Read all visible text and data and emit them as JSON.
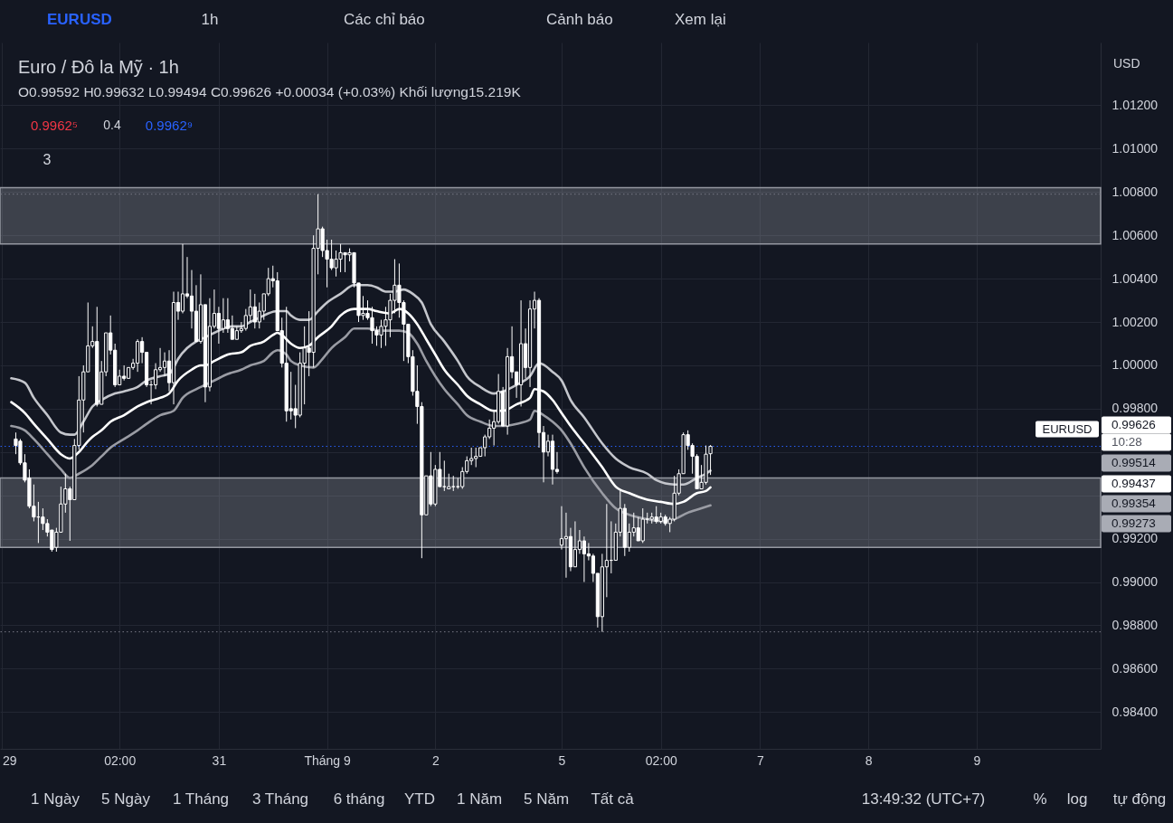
{
  "chart_data": {
    "type": "candlestick",
    "title": "Euro / Đô la Mỹ · 1h",
    "subtitle": "O0.99592 H0.99632 L0.99494 C0.99626 +0.00034 (+0.03%) Khối lượng15.219K",
    "color": "#ffffff",
    "categories": [
      "29",
      null,
      null,
      null,
      null,
      null,
      null,
      null,
      null,
      null,
      null,
      null,
      null,
      null,
      null,
      null,
      null,
      null,
      null,
      null,
      null,
      null,
      null,
      null,
      null,
      null,
      "02:00",
      null,
      null,
      null,
      null,
      null,
      null,
      null,
      null,
      null,
      null,
      null,
      null,
      null,
      null,
      null,
      null,
      null,
      null,
      null,
      null,
      null,
      "31",
      null,
      null,
      null,
      null,
      null,
      null,
      null,
      null,
      null,
      null,
      null,
      null,
      null,
      null,
      null,
      null,
      null,
      null,
      null,
      null,
      null,
      null,
      null,
      "Tháng 9",
      null,
      null,
      null,
      null,
      null,
      null,
      null,
      null,
      null,
      null,
      null,
      null,
      null,
      null,
      null,
      null,
      null,
      null,
      null,
      null,
      null,
      null,
      null,
      "2",
      null,
      null,
      null,
      null,
      null,
      null,
      null,
      null,
      null,
      null,
      null,
      null,
      null,
      null,
      null,
      null,
      null,
      null,
      null,
      null,
      null,
      null,
      null,
      null,
      null,
      null,
      null,
      "5",
      null,
      null,
      null,
      null,
      null,
      null,
      null,
      null,
      null,
      null,
      null,
      null,
      null,
      null,
      null,
      null,
      null,
      null,
      null,
      null,
      null,
      "02:00",
      null,
      null,
      null,
      null,
      null,
      null,
      null,
      null,
      null,
      null,
      null,
      null,
      null,
      null,
      null,
      null,
      null,
      null,
      null,
      null,
      null,
      "7",
      null,
      null,
      null,
      null,
      null,
      null,
      null,
      null,
      null,
      null,
      null,
      null,
      null,
      null,
      null,
      null,
      null,
      null,
      null,
      null,
      null,
      null,
      null,
      "8",
      null,
      null,
      null,
      null,
      null,
      null,
      null,
      null,
      null,
      null,
      null,
      null,
      null,
      null,
      null,
      null,
      null,
      null,
      null,
      null,
      null,
      null,
      null,
      "9",
      null,
      null,
      null,
      null,
      null,
      null,
      null,
      null,
      null,
      null,
      null,
      null,
      null,
      null,
      null,
      null,
      null,
      null,
      null,
      null,
      null,
      null,
      null,
      null,
      null,
      null,
      null
    ],
    "ohlc": [
      null,
      null,
      null,
      [
        0.9966,
        0.9969,
        0.9959,
        0.9963
      ],
      [
        0.9965,
        0.9966,
        0.9954,
        0.9955
      ],
      [
        0.9955,
        0.9959,
        0.9946,
        0.9947
      ],
      [
        0.9948,
        0.9952,
        0.9934,
        0.9935
      ],
      [
        0.9935,
        0.9945,
        0.9928,
        0.993
      ],
      [
        0.993,
        0.9937,
        0.9918,
        0.993
      ],
      [
        0.993,
        0.9934,
        0.9924,
        0.9927
      ],
      [
        0.9927,
        0.9929,
        0.9921,
        0.9923
      ],
      [
        0.9924,
        0.9924,
        0.9914,
        0.9915
      ],
      [
        0.9916,
        0.9925,
        0.9914,
        0.9923
      ],
      [
        0.9923,
        0.9944,
        0.9923,
        0.9936
      ],
      [
        0.9936,
        0.995,
        0.9932,
        0.9943
      ],
      [
        0.9943,
        0.9944,
        0.9919,
        0.9938
      ],
      [
        0.9938,
        0.9966,
        0.9938,
        0.9963
      ],
      [
        0.9963,
        0.9995,
        0.9961,
        0.9984
      ],
      [
        0.9984,
        1.0,
        0.9969,
        0.9997
      ],
      [
        0.9997,
        1.0029,
        0.9997,
        1.0009
      ],
      [
        1.0009,
        1.0018,
        1.0008,
        1.0011
      ],
      [
        1.0011,
        1.0027,
        0.9981,
        0.9982
      ],
      [
        0.9982,
        1.0002,
        0.9982,
        0.9997
      ],
      [
        0.9997,
        1.0015,
        0.9995,
        1.0015
      ],
      [
        1.0015,
        1.0023,
        1.0005,
        1.0007
      ],
      [
        1.0007,
        1.001,
        0.999,
        0.9991
      ],
      [
        0.9991,
        0.9998,
        0.9991,
        0.9995
      ],
      [
        0.9995,
        1.0,
        0.9993,
        0.9994
      ],
      [
        0.9994,
        0.9999,
        0.9994,
        0.9999
      ],
      [
        0.9999,
        1.0003,
        0.9998,
        1.0001
      ],
      [
        1.0001,
        1.0012,
        0.9997,
        1.0011
      ],
      [
        1.0011,
        1.0013,
        1.0001,
        1.0006
      ],
      [
        1.0006,
        1.0006,
        0.999,
        0.9991
      ],
      [
        0.9991,
        0.9993,
        0.9982,
        0.9991
      ],
      [
        0.9991,
        1.0001,
        0.9989,
        0.9998
      ],
      [
        0.9998,
        1.0008,
        0.9997,
        0.9999
      ],
      [
        0.9999,
        1.0006,
        0.9995,
        1.0002
      ],
      [
        1.0002,
        1.0007,
        0.9988,
        0.9992
      ],
      [
        0.9992,
        1.0034,
        0.9982,
        1.0029
      ],
      [
        1.0029,
        1.0034,
        1.0021,
        1.0025
      ],
      [
        1.0025,
        1.0056,
        1.0024,
        1.0033
      ],
      [
        1.0033,
        1.005,
        1.0031,
        1.0032
      ],
      [
        1.0032,
        1.0044,
        1.0017,
        1.0025
      ],
      [
        1.0025,
        1.0037,
        1.0011,
        1.0011
      ],
      [
        1.0011,
        1.0042,
        1.001,
        1.0028
      ],
      [
        1.0028,
        1.0028,
        0.9983,
        0.999
      ],
      [
        0.999,
        1.0031,
        0.9988,
        1.0018
      ],
      [
        1.0018,
        1.0035,
        1.0017,
        1.0024
      ],
      [
        1.0024,
        1.0027,
        1.001,
        1.0017
      ],
      [
        1.0017,
        1.0031,
        1.0015,
        1.0021
      ],
      [
        1.0021,
        1.0031,
        1.0015,
        1.0017
      ],
      [
        1.0017,
        1.0023,
        1.0012,
        1.0012
      ],
      [
        1.0012,
        1.0018,
        1.0012,
        1.0016
      ],
      [
        1.0016,
        1.002,
        1.0015,
        1.0017
      ],
      [
        1.0017,
        1.0026,
        1.0016,
        1.0023
      ],
      [
        1.0023,
        1.0035,
        1.002,
        1.0027
      ],
      [
        1.0027,
        1.0033,
        1.0017,
        1.002
      ],
      [
        1.002,
        1.0029,
        1.0017,
        1.0025
      ],
      [
        1.0025,
        1.0033,
        1.0021,
        1.0033
      ],
      [
        1.0033,
        1.0045,
        1.0032,
        1.004
      ],
      [
        1.004,
        1.0046,
        1.0036,
        1.0039
      ],
      [
        1.0039,
        1.0043,
        1.0016,
        1.0016
      ],
      [
        1.0016,
        1.0022,
        0.9999,
        1.0001
      ],
      [
        1.0001,
        1.0027,
        0.9974,
        0.9979
      ],
      [
        0.998,
        0.9997,
        0.9975,
        0.9979
      ],
      [
        0.998,
        0.9991,
        0.9971,
        0.9977
      ],
      [
        0.9977,
        1.0006,
        0.9976,
        1.0001
      ],
      [
        1.0001,
        1.0018,
        0.9982,
        1.0008
      ],
      [
        1.0008,
        1.0025,
        0.9995,
        1.0006
      ],
      [
        1.0006,
        1.006,
        0.9999,
        1.0054
      ],
      [
        1.0054,
        1.0079,
        1.0042,
        1.0063
      ],
      [
        1.0063,
        1.0064,
        1.005,
        1.0053
      ],
      [
        1.0053,
        1.0058,
        1.0036,
        1.0049
      ],
      [
        1.0049,
        1.0058,
        1.0044,
        1.0045
      ],
      [
        1.0045,
        1.0053,
        1.0041,
        1.0049
      ],
      [
        1.0049,
        1.0056,
        1.0043,
        1.0052
      ],
      [
        1.0052,
        1.0052,
        1.0043,
        1.0051
      ],
      [
        1.0051,
        1.0054,
        1.0048,
        1.0052
      ],
      [
        1.0052,
        1.0052,
        1.0036,
        1.0038
      ],
      [
        1.0038,
        1.0038,
        1.002,
        1.0023
      ],
      [
        1.0023,
        1.0032,
        1.0021,
        1.0024
      ],
      [
        1.0024,
        1.003,
        1.0021,
        1.0022
      ],
      [
        1.0022,
        1.0027,
        1.001,
        1.0016
      ],
      [
        1.0016,
        1.0018,
        1.0009,
        1.0014
      ],
      [
        1.0014,
        1.0021,
        1.0008,
        1.0018
      ],
      [
        1.0018,
        1.0027,
        1.0009,
        1.0021
      ],
      [
        1.0021,
        1.0033,
        1.0013,
        1.003
      ],
      [
        1.003,
        1.0049,
        1.0024,
        1.0037
      ],
      [
        1.0037,
        1.0047,
        1.0022,
        1.0029
      ],
      [
        1.0029,
        1.003,
        1.0002,
        1.0019
      ],
      [
        1.0019,
        1.0019,
        1.0001,
        1.0004
      ],
      [
        1.0004,
        1.0007,
        0.9986,
        0.9988
      ],
      [
        0.9988,
        1.0,
        0.9973,
        0.9981
      ],
      [
        0.9981,
        0.9983,
        0.9911,
        0.9931
      ],
      [
        0.9931,
        0.9949,
        0.9931,
        0.9949
      ],
      [
        0.9949,
        0.996,
        0.9935,
        0.9936
      ],
      [
        0.9936,
        0.9954,
        0.9935,
        0.9952
      ],
      [
        0.9952,
        0.996,
        0.9944,
        0.9944
      ],
      [
        0.9944,
        0.9956,
        0.9942,
        0.9944
      ],
      [
        0.9943,
        0.995,
        0.9943,
        0.9944
      ],
      [
        0.9944,
        0.9949,
        0.9942,
        0.9944
      ],
      [
        0.9944,
        0.9948,
        0.9943,
        0.9944
      ],
      [
        0.9944,
        0.9953,
        0.9943,
        0.9951
      ],
      [
        0.9951,
        0.9958,
        0.995,
        0.9956
      ],
      [
        0.9956,
        0.9962,
        0.9954,
        0.9957
      ],
      [
        0.9957,
        0.9962,
        0.9953,
        0.9958
      ],
      [
        0.9958,
        0.9962,
        0.9958,
        0.9962
      ],
      [
        0.9962,
        0.9968,
        0.9958,
        0.9967
      ],
      [
        0.9967,
        0.9975,
        0.9966,
        0.9971
      ],
      [
        0.9971,
        0.9979,
        0.9963,
        0.9974
      ],
      [
        0.9974,
        0.9996,
        0.9973,
        0.9988
      ],
      [
        0.9988,
        0.999,
        0.9972,
        0.9972
      ],
      [
        0.9972,
        1.0008,
        0.9968,
        1.0004
      ],
      [
        1.0004,
        1.0018,
        0.9994,
        0.9997
      ],
      [
        0.9997,
        0.9997,
        0.9985,
        0.9991
      ],
      [
        0.9991,
        1.003,
        0.9981,
        1.001
      ],
      [
        1.001,
        1.0017,
        0.9994,
        0.9999
      ],
      [
        0.9999,
        1.003,
        0.999,
        1.0026
      ],
      [
        1.0026,
        1.0034,
        1.0017,
        1.003
      ],
      [
        1.003,
        1.0031,
        0.9962,
        0.9969
      ],
      [
        0.9969,
        0.9972,
        0.9946,
        0.996
      ],
      [
        0.996,
        0.9968,
        0.9958,
        0.9965
      ],
      [
        0.9965,
        0.9968,
        0.9945,
        0.9952
      ],
      [
        0.9952,
        0.996,
        0.995,
        0.9951
      ],
      [
        0.9917,
        0.9935,
        0.9915,
        0.992
      ],
      [
        0.992,
        0.9932,
        0.9902,
        0.9921
      ],
      [
        0.9921,
        0.9925,
        0.9905,
        0.9907
      ],
      [
        0.9907,
        0.9928,
        0.9907,
        0.9915
      ],
      [
        0.9915,
        0.9924,
        0.9913,
        0.9919
      ],
      [
        0.9919,
        0.9921,
        0.99,
        0.9913
      ],
      [
        0.9913,
        0.9918,
        0.991,
        0.9912
      ],
      [
        0.9912,
        0.9913,
        0.99,
        0.9904
      ],
      [
        0.9904,
        0.9904,
        0.9879,
        0.9884
      ],
      [
        0.9884,
        0.9913,
        0.9877,
        0.9907
      ],
      [
        0.9907,
        0.9936,
        0.9893,
        0.991
      ],
      [
        0.991,
        0.9928,
        0.9904,
        0.991
      ],
      [
        0.991,
        0.9927,
        0.991,
        0.9923
      ],
      [
        0.9923,
        0.9943,
        0.9921,
        0.9934
      ],
      [
        0.9934,
        0.9936,
        0.9912,
        0.9916
      ],
      [
        0.9916,
        0.9927,
        0.9914,
        0.9923
      ],
      [
        0.9923,
        0.9932,
        0.9921,
        0.9925
      ],
      [
        0.9925,
        0.993,
        0.9919,
        0.9919
      ],
      [
        0.9919,
        0.9934,
        0.9918,
        0.9929
      ],
      [
        0.9929,
        0.9932,
        0.9927,
        0.9929
      ],
      [
        0.9929,
        0.9932,
        0.9927,
        0.993
      ],
      [
        0.993,
        0.9935,
        0.9927,
        0.9928
      ],
      [
        0.9928,
        0.9932,
        0.9927,
        0.993
      ],
      [
        0.993,
        0.9931,
        0.9926,
        0.9927
      ],
      [
        0.9927,
        0.993,
        0.9923,
        0.9929
      ],
      [
        0.9929,
        0.9949,
        0.9928,
        0.9941
      ],
      [
        0.9941,
        0.9952,
        0.994,
        0.995
      ],
      [
        0.995,
        0.9969,
        0.995,
        0.9968
      ],
      [
        0.9968,
        0.997,
        0.9961,
        0.9963
      ],
      [
        0.9963,
        0.9964,
        0.995,
        0.9958
      ],
      [
        0.9958,
        0.9959,
        0.9943,
        0.9943
      ],
      [
        0.9943,
        0.9954,
        0.9943,
        0.9946
      ],
      [
        0.9946,
        0.9963,
        0.9945,
        0.9959
      ],
      [
        0.99592,
        0.99632,
        0.99494,
        0.99626
      ],
      null,
      null,
      null,
      null,
      null,
      null,
      null,
      null,
      null,
      null,
      null,
      null,
      null,
      null,
      null,
      null,
      null,
      null,
      null,
      null,
      null,
      null,
      null,
      null,
      null,
      null,
      null,
      null,
      null,
      null,
      null,
      null,
      null,
      null,
      null,
      null,
      null,
      null,
      null,
      null,
      null,
      null,
      null,
      null,
      null,
      null,
      null,
      null,
      null,
      null,
      null,
      null,
      null,
      null,
      null,
      null,
      null,
      null,
      null,
      null,
      null,
      null,
      null,
      null,
      null,
      null,
      null,
      null,
      null,
      null,
      null,
      null,
      null,
      null,
      null,
      null,
      null,
      null,
      null,
      null,
      null,
      null,
      null,
      null,
      null,
      null
    ],
    "series": [
      {
        "type": "line",
        "color": "#c4c6cc",
        "values": [
          null,
          null,
          0.9994,
          null,
          null,
          0.9992,
          null,
          0.9985,
          null,
          null,
          0.9977,
          null,
          null,
          0.9969,
          null,
          0.9968,
          0.9968,
          null,
          0.9974,
          null,
          0.9981,
          null,
          0.9984,
          null,
          null,
          0.9987,
          null,
          0.9988,
          null,
          null,
          0.999,
          null,
          0.9993,
          null,
          null,
          0.9995,
          null,
          0.9996,
          0.9999,
          1.0003,
          null,
          1.0008,
          null,
          1.0011,
          null,
          1.0013,
          null,
          1.0015,
          null,
          1.0017,
          null,
          1.0018,
          null,
          1.0018,
          null,
          1.002,
          null,
          1.0022,
          null,
          1.0024,
          null,
          1.0025,
          null,
          1.0025,
          1.0023,
          null,
          1.0021,
          null,
          1.0021,
          null,
          1.0025,
          null,
          1.0029,
          null,
          null,
          1.0033,
          null,
          null,
          1.0037,
          null,
          null,
          1.0037,
          null,
          1.0036,
          null,
          1.0034,
          null,
          1.0034,
          null,
          1.0035,
          null,
          1.0033,
          null,
          1.0029,
          null,
          1.0019,
          null,
          null,
          1.0011,
          null,
          null,
          1.0002,
          null,
          0.9995,
          null,
          null,
          0.999,
          null,
          null,
          0.9987,
          null,
          0.9988,
          null,
          null,
          0.9991,
          null,
          null,
          0.9995,
          null,
          1.0001,
          null,
          null,
          0.9997,
          null,
          0.9993,
          null,
          0.9984,
          null,
          null,
          0.9976,
          null,
          null,
          null,
          0.9964,
          null,
          null,
          0.9957,
          null,
          null,
          0.9953,
          null,
          null,
          null,
          0.995,
          null,
          0.9947,
          null,
          null,
          null,
          0.9945,
          null,
          0.9945,
          null,
          null,
          0.9948,
          null,
          0.995,
          0.99514,
          null,
          null,
          null,
          null,
          null,
          null,
          null,
          null,
          null,
          null,
          null,
          null,
          null,
          null,
          null,
          null,
          null,
          null,
          null,
          null,
          null,
          null,
          null,
          null,
          null,
          null,
          null,
          null,
          null,
          null,
          null,
          null,
          null,
          null,
          null,
          null,
          null,
          null,
          null,
          null,
          null,
          null,
          null,
          null,
          null,
          null,
          null,
          null,
          null,
          null,
          null,
          null,
          null,
          null,
          null,
          null,
          null,
          null,
          null,
          null,
          null,
          null,
          null,
          null,
          null,
          null,
          null,
          null,
          null,
          null,
          null,
          null,
          null,
          null,
          null,
          null,
          null,
          null,
          null,
          null,
          null,
          null,
          null,
          null,
          null,
          null
        ]
      },
      {
        "type": "line",
        "color": "#ffffff",
        "values": [
          null,
          null,
          0.9983,
          null,
          null,
          0.9978,
          null,
          0.9973,
          null,
          null,
          0.9966,
          null,
          null,
          0.9959,
          null,
          0.9957,
          null,
          0.996,
          null,
          0.9965,
          0.9967,
          null,
          0.997,
          null,
          0.9974,
          null,
          null,
          0.9977,
          null,
          null,
          0.9981,
          null,
          0.9983,
          null,
          null,
          0.9985,
          null,
          0.9987,
          null,
          0.9993,
          null,
          null,
          0.9998,
          null,
          1.0,
          1.0,
          null,
          1.0002,
          null,
          null,
          1.0005,
          null,
          null,
          1.0006,
          null,
          1.0009,
          null,
          null,
          1.0011,
          null,
          1.0014,
          1.0015,
          1.0014,
          null,
          1.001,
          null,
          1.0008,
          null,
          1.0009,
          null,
          1.0013,
          null,
          null,
          1.0018,
          null,
          1.0023,
          null,
          null,
          1.0026,
          null,
          null,
          1.0026,
          null,
          1.0025,
          null,
          null,
          1.0024,
          null,
          1.0026,
          null,
          1.0024,
          null,
          1.0019,
          null,
          1.0012,
          null,
          1.0005,
          null,
          0.9998,
          null,
          null,
          0.9991,
          null,
          0.9986,
          null,
          null,
          0.9982,
          null,
          null,
          0.9979,
          null,
          0.9979,
          null,
          null,
          0.9982,
          null,
          null,
          0.9985,
          0.9989,
          null,
          0.9988,
          null,
          0.9984,
          null,
          0.9978,
          null,
          0.9972,
          null,
          null,
          0.9964,
          null,
          null,
          null,
          0.9953,
          null,
          null,
          0.9944,
          null,
          null,
          0.9941,
          null,
          null,
          null,
          0.9938,
          null,
          null,
          0.9937,
          null,
          null,
          0.9936,
          null,
          0.9937,
          null,
          null,
          0.9941,
          null,
          0.9942,
          0.99437,
          null,
          null,
          null,
          null,
          null,
          null,
          null,
          null,
          null,
          null,
          null,
          null,
          null,
          null,
          null,
          null,
          null,
          null,
          null,
          null,
          null,
          null,
          null,
          null,
          null,
          null,
          null,
          null,
          null,
          null,
          null,
          null,
          null,
          null,
          null,
          null,
          null,
          null,
          null,
          null,
          null,
          null,
          null,
          null,
          null,
          null,
          null,
          null,
          null,
          null,
          null,
          null,
          null,
          null,
          null,
          null,
          null,
          null,
          null,
          null,
          null,
          null,
          null,
          null,
          null,
          null,
          null,
          null,
          null,
          null,
          null,
          null,
          null,
          null,
          null,
          null,
          null,
          null,
          null,
          null,
          null,
          null,
          null,
          null,
          null,
          null
        ]
      },
      {
        "type": "line",
        "color": "#9a9ca4",
        "values": [
          null,
          null,
          0.9972,
          null,
          null,
          0.997,
          null,
          0.9966,
          null,
          null,
          0.9959,
          null,
          null,
          0.9952,
          null,
          0.9948,
          null,
          0.995,
          null,
          null,
          0.9954,
          null,
          0.9958,
          null,
          0.9962,
          null,
          null,
          0.9966,
          null,
          null,
          0.997,
          null,
          0.9973,
          null,
          null,
          0.9977,
          null,
          null,
          0.9979,
          null,
          0.9985,
          null,
          null,
          0.9989,
          null,
          0.9991,
          null,
          0.9993,
          null,
          null,
          0.9996,
          null,
          null,
          0.9998,
          null,
          1.0,
          null,
          null,
          1.0002,
          null,
          1.0006,
          1.0007,
          null,
          1.0005,
          1.0002,
          null,
          1.0,
          null,
          null,
          0.9999,
          null,
          1.0003,
          null,
          1.0008,
          null,
          null,
          1.0013,
          null,
          1.0017,
          null,
          null,
          1.0017,
          null,
          null,
          1.0016,
          null,
          null,
          null,
          1.0016,
          null,
          1.0015,
          null,
          1.001,
          null,
          1.0002,
          null,
          0.9995,
          null,
          0.9989,
          null,
          null,
          0.9982,
          null,
          0.9977,
          null,
          null,
          0.9974,
          null,
          null,
          0.9972,
          null,
          0.9972,
          null,
          null,
          0.9973,
          null,
          null,
          0.9975,
          0.9979,
          null,
          0.9977,
          null,
          0.9974,
          null,
          0.997,
          null,
          0.9964,
          null,
          null,
          0.9953,
          null,
          null,
          null,
          0.9941,
          null,
          null,
          0.9934,
          null,
          null,
          0.9931,
          null,
          null,
          null,
          0.9929,
          null,
          null,
          0.9928,
          null,
          null,
          0.9929,
          null,
          null,
          0.9932,
          null,
          null,
          0.9934,
          null,
          0.99354,
          null,
          null,
          null,
          null,
          null,
          null,
          null,
          null,
          null,
          null,
          null,
          null,
          null,
          null,
          null,
          null,
          null,
          null,
          null,
          null,
          null,
          null,
          null,
          null,
          null,
          null,
          null,
          null,
          null,
          null,
          null,
          null,
          null,
          null,
          null,
          null,
          null,
          null,
          null,
          null,
          null,
          null,
          null,
          null,
          null,
          null,
          null,
          null,
          null,
          null,
          null,
          null,
          null,
          null,
          null,
          null,
          null,
          null,
          null,
          null,
          null,
          null,
          null,
          null,
          null,
          null,
          null,
          null,
          null,
          null,
          null,
          null,
          null,
          null,
          null,
          null,
          null,
          null,
          null,
          null,
          null,
          null,
          null,
          null,
          null,
          null
        ]
      }
    ],
    "ylim": [
      0.9823,
      1.0149
    ],
    "yticks": [
      {
        "value": 0.984,
        "label": "0.98400"
      },
      {
        "value": 0.986,
        "label": "0.98600"
      },
      {
        "value": 0.988,
        "label": "0.98800"
      },
      {
        "value": 0.99,
        "label": "0.99000"
      },
      {
        "value": 0.992,
        "label": "0.99200"
      },
      {
        "value": 0.994,
        "label": null
      },
      {
        "value": 0.996,
        "label": null
      },
      {
        "value": 0.998,
        "label": "0.99800"
      },
      {
        "value": 1.0,
        "label": "1.00000"
      },
      {
        "value": 1.002,
        "label": "1.00200"
      },
      {
        "value": 1.004,
        "label": "1.00400"
      },
      {
        "value": 1.006,
        "label": "1.00600"
      },
      {
        "value": 1.008,
        "label": "1.00800"
      },
      {
        "value": 1.01,
        "label": "1.01000"
      },
      {
        "value": 1.012,
        "label": "1.01200"
      }
    ],
    "grid": true,
    "bands": [
      {
        "axis": "y",
        "from": 1.0056,
        "to": 1.0082,
        "color": "#9598a1"
      },
      {
        "axis": "y",
        "from": 0.9916,
        "to": 0.9948,
        "color": "#9598a1"
      }
    ],
    "ref_lines": [
      {
        "axis": "y",
        "value": 1.0079,
        "color": "#787b86",
        "line_style": "dotted"
      },
      {
        "axis": "y",
        "value": 0.9877,
        "color": "#787b86",
        "line_style": "dotted"
      },
      {
        "axis": "y",
        "value": 0.99626,
        "label": "EURUSD",
        "color": "#2962ff",
        "line_style": "dotted"
      }
    ],
    "annotations": [
      "EURUSD",
      "1h",
      "Các chỉ báo",
      "Cảnh báo",
      "Xem lại",
      "USD",
      "0.9962⁵",
      "0.4",
      "0.9962⁹",
      "3",
      "1 Ngày",
      "5 Ngày",
      "1 Tháng",
      "3 Tháng",
      "6 tháng",
      "YTD",
      "1 Năm",
      "5 Năm",
      "Tất cả",
      "13:49:32 (UTC+7)",
      "%",
      "log",
      "tự động",
      "0.99626",
      "10:28",
      "0.99514",
      "0.99437",
      "0.99354",
      "0.99273"
    ]
  }
}
